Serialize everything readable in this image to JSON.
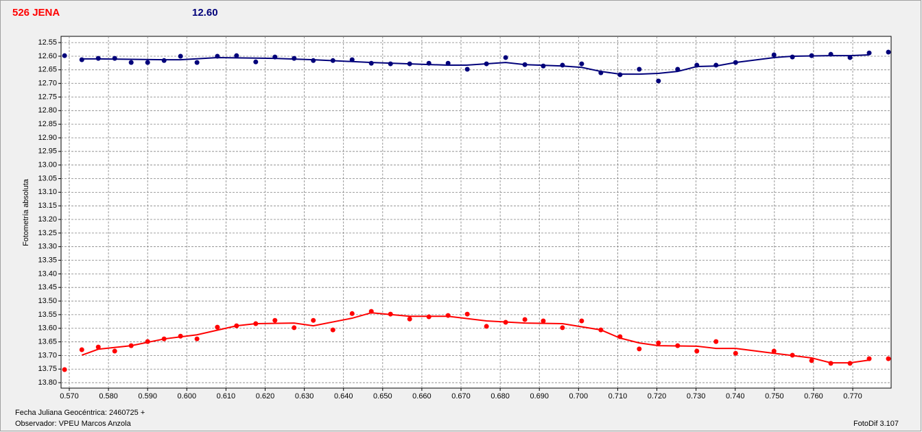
{
  "chart_data": {
    "type": "scatter",
    "title": "526 JENA",
    "title_color": "#ff0000",
    "subtitle": "12.60",
    "subtitle_color": "#00007a",
    "ylabel": "Fotometría absoluta",
    "xlabel": "Fecha Juliana Geocéntrica: 2460725 +",
    "observer": "Observador: VPEU Marcos Anzola",
    "software": "FotoDif 3.107",
    "grid": true,
    "y_inverted": true,
    "xlim": [
      0.5679,
      0.7798
    ],
    "ylim": [
      12.527,
      13.82
    ],
    "xticks": [
      {
        "value": 0.57,
        "label": "0.570"
      },
      {
        "value": 0.58,
        "label": "0.580"
      },
      {
        "value": 0.59,
        "label": "0.590"
      },
      {
        "value": 0.6,
        "label": "0.600"
      },
      {
        "value": 0.61,
        "label": "0.610"
      },
      {
        "value": 0.62,
        "label": "0.620"
      },
      {
        "value": 0.63,
        "label": "0.630"
      },
      {
        "value": 0.64,
        "label": "0.640"
      },
      {
        "value": 0.65,
        "label": "0.650"
      },
      {
        "value": 0.66,
        "label": "0.660"
      },
      {
        "value": 0.67,
        "label": "0.670"
      },
      {
        "value": 0.68,
        "label": "0.680"
      },
      {
        "value": 0.69,
        "label": "0.690"
      },
      {
        "value": 0.7,
        "label": "0.700"
      },
      {
        "value": 0.71,
        "label": "0.710"
      },
      {
        "value": 0.72,
        "label": "0.720"
      },
      {
        "value": 0.73,
        "label": "0.730"
      },
      {
        "value": 0.74,
        "label": "0.740"
      },
      {
        "value": 0.75,
        "label": "0.750"
      },
      {
        "value": 0.76,
        "label": "0.760"
      },
      {
        "value": 0.77,
        "label": "0.770"
      }
    ],
    "yticks": [
      {
        "value": 12.55,
        "label": "12.55"
      },
      {
        "value": 12.6,
        "label": "12.60"
      },
      12.65,
      {
        "value": 12.7,
        "label": "12.70"
      },
      12.75,
      {
        "value": 12.8,
        "label": "12.80"
      },
      12.85,
      {
        "value": 12.9,
        "label": "12.90"
      },
      12.95,
      {
        "value": 13.0,
        "label": "13.00"
      },
      13.05,
      {
        "value": 13.1,
        "label": "13.10"
      },
      13.15,
      {
        "value": 13.2,
        "label": "13.20"
      },
      13.25,
      {
        "value": 13.3,
        "label": "13.30"
      },
      13.35,
      {
        "value": 13.4,
        "label": "13.40"
      },
      13.45,
      {
        "value": 13.5,
        "label": "13.50"
      },
      13.55,
      {
        "value": 13.6,
        "label": "13.60"
      },
      13.65,
      {
        "value": 13.7,
        "label": "13.70"
      },
      13.75,
      {
        "value": 13.8,
        "label": "13.80"
      }
    ],
    "series": [
      {
        "mode": "markers",
        "color": "#00007a",
        "x": [
          0.5688,
          0.5732,
          0.5774,
          0.5816,
          0.5858,
          0.59,
          0.5942,
          0.5984,
          0.6026,
          0.6078,
          0.6127,
          0.6176,
          0.6225,
          0.6274,
          0.6323,
          0.6373,
          0.6422,
          0.6471,
          0.652,
          0.6569,
          0.6618,
          0.6667,
          0.6716,
          0.6765,
          0.6814,
          0.6863,
          0.691,
          0.6959,
          0.7008,
          0.7057,
          0.7106,
          0.7155,
          0.7204,
          0.7253,
          0.7302,
          0.7351,
          0.7401,
          0.7499,
          0.7546,
          0.7595,
          0.7644,
          0.7693,
          0.7742,
          0.7791
        ],
        "values": [
          12.598,
          12.613,
          12.608,
          12.608,
          12.623,
          12.623,
          12.616,
          12.6,
          12.623,
          12.6,
          12.598,
          12.621,
          12.603,
          12.608,
          12.616,
          12.616,
          12.613,
          12.626,
          12.628,
          12.628,
          12.626,
          12.626,
          12.648,
          12.628,
          12.605,
          12.631,
          12.636,
          12.633,
          12.628,
          12.661,
          12.668,
          12.648,
          12.691,
          12.648,
          12.633,
          12.633,
          12.623,
          12.595,
          12.603,
          12.598,
          12.593,
          12.605,
          12.588,
          12.585
        ]
      },
      {
        "mode": "line",
        "color": "#00007a",
        "x": [
          0.5732,
          0.5774,
          0.5943,
          0.5984,
          0.6078,
          0.6224,
          0.6323,
          0.6471,
          0.6569,
          0.6667,
          0.6714,
          0.6814,
          0.6863,
          0.6959,
          0.7008,
          0.7057,
          0.7106,
          0.7155,
          0.7204,
          0.7253,
          0.7302,
          0.7351,
          0.7401,
          0.7499,
          0.7546,
          0.7644,
          0.7693,
          0.7742
        ],
        "values": [
          12.61,
          12.61,
          12.613,
          12.613,
          12.605,
          12.608,
          12.613,
          12.623,
          12.628,
          12.633,
          12.633,
          12.623,
          12.631,
          12.636,
          12.641,
          12.656,
          12.666,
          12.666,
          12.663,
          12.656,
          12.638,
          12.636,
          12.623,
          12.605,
          12.6,
          12.598,
          12.598,
          12.595
        ]
      },
      {
        "mode": "markers",
        "color": "#ff0000",
        "x": [
          0.5688,
          0.5732,
          0.5774,
          0.5816,
          0.5858,
          0.59,
          0.5942,
          0.5984,
          0.6026,
          0.6078,
          0.6127,
          0.6176,
          0.6225,
          0.6274,
          0.6323,
          0.6373,
          0.6422,
          0.6471,
          0.652,
          0.6569,
          0.6618,
          0.6667,
          0.6716,
          0.6765,
          0.6814,
          0.6863,
          0.691,
          0.6959,
          0.7008,
          0.7057,
          0.7106,
          0.7155,
          0.7204,
          0.7253,
          0.7302,
          0.7351,
          0.7401,
          0.7499,
          0.7546,
          0.7595,
          0.7644,
          0.7693,
          0.7742,
          0.7791
        ],
        "values": [
          13.752,
          13.679,
          13.669,
          13.684,
          13.664,
          13.649,
          13.639,
          13.629,
          13.639,
          13.596,
          13.591,
          13.583,
          13.571,
          13.598,
          13.571,
          13.606,
          13.546,
          13.538,
          13.548,
          13.566,
          13.558,
          13.553,
          13.548,
          13.593,
          13.578,
          13.568,
          13.573,
          13.598,
          13.573,
          13.606,
          13.631,
          13.676,
          13.654,
          13.664,
          13.684,
          13.649,
          13.692,
          13.684,
          13.699,
          13.719,
          13.729,
          13.729,
          13.712,
          13.712
        ]
      },
      {
        "mode": "line",
        "color": "#ff0000",
        "x": [
          0.5732,
          0.5774,
          0.5858,
          0.5943,
          0.6026,
          0.6127,
          0.6176,
          0.6274,
          0.6323,
          0.6422,
          0.6471,
          0.6569,
          0.6667,
          0.6765,
          0.6863,
          0.6959,
          0.7057,
          0.7106,
          0.7155,
          0.7204,
          0.7302,
          0.7351,
          0.7401,
          0.7499,
          0.7595,
          0.7644,
          0.7693,
          0.7742
        ],
        "values": [
          13.699,
          13.677,
          13.664,
          13.639,
          13.624,
          13.591,
          13.583,
          13.581,
          13.591,
          13.563,
          13.543,
          13.556,
          13.556,
          13.573,
          13.581,
          13.583,
          13.606,
          13.636,
          13.654,
          13.664,
          13.666,
          13.674,
          13.674,
          13.692,
          13.709,
          13.727,
          13.727,
          13.717
        ]
      }
    ]
  }
}
